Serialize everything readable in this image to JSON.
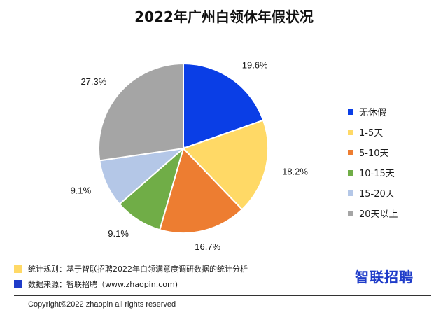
{
  "chart_data": {
    "type": "pie",
    "title": "2022年广州白领休年假状况",
    "categories": [
      "无休假",
      "1-5天",
      "5-10天",
      "10-15天",
      "15-20天",
      "20天以上"
    ],
    "values": [
      19.6,
      18.2,
      16.7,
      9.1,
      9.1,
      27.3
    ],
    "value_labels": [
      "19.6%",
      "18.2%",
      "16.7%",
      "9.1%",
      "9.1%",
      "27.3%"
    ],
    "colors": [
      "#0a3ee6",
      "#ffd966",
      "#ed7d31",
      "#70ad47",
      "#b4c7e7",
      "#a5a5a5"
    ],
    "start_angle_deg": 0,
    "direction": "clockwise",
    "legend_position": "right"
  },
  "footer": {
    "note_rule_label": "统计规则：基于智联招聘2022年白领满意度调研数据的统计分析",
    "note_rule_color": "#ffd966",
    "note_source_label": "数据来源：智联招聘（www.zhaopin.com)",
    "note_source_color": "#1f3cc9",
    "brand": "智联招聘",
    "brand_color": "#1f3cc9",
    "copyright": "Copyright©2022 zhaopin all rights reserved"
  }
}
